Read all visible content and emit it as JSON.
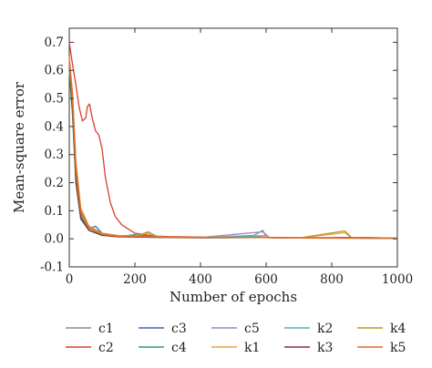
{
  "chart_data": {
    "type": "line",
    "title": "",
    "xlabel": "Number of epochs",
    "ylabel": "Mean-square error",
    "xlim": [
      0,
      1000
    ],
    "ylim": [
      -0.1,
      0.75
    ],
    "x_ticks": [
      0,
      200,
      400,
      600,
      800,
      1000
    ],
    "y_ticks": [
      -0.1,
      0.0,
      0.1,
      0.2,
      0.3,
      0.4,
      0.5,
      0.6,
      0.7
    ],
    "grid": false,
    "legend_position": "bottom",
    "series": [
      {
        "name": "c1",
        "color": "#8a8a9a",
        "points": [
          [
            0,
            0.6
          ],
          [
            10,
            0.45
          ],
          [
            20,
            0.22
          ],
          [
            35,
            0.08
          ],
          [
            60,
            0.03
          ],
          [
            100,
            0.015
          ],
          [
            150,
            0.008
          ],
          [
            200,
            0.012
          ],
          [
            240,
            0.006
          ],
          [
            300,
            0.004
          ],
          [
            400,
            0.003
          ],
          [
            550,
            0.004
          ],
          [
            590,
            0.03
          ],
          [
            600,
            0.005
          ],
          [
            700,
            0.003
          ],
          [
            850,
            0.003
          ],
          [
            900,
            0.002
          ],
          [
            1000,
            0.002
          ]
        ]
      },
      {
        "name": "c2",
        "color": "#d9402b",
        "points": [
          [
            0,
            0.7
          ],
          [
            10,
            0.62
          ],
          [
            20,
            0.55
          ],
          [
            30,
            0.47
          ],
          [
            40,
            0.42
          ],
          [
            50,
            0.43
          ],
          [
            55,
            0.47
          ],
          [
            62,
            0.48
          ],
          [
            70,
            0.43
          ],
          [
            80,
            0.385
          ],
          [
            90,
            0.37
          ],
          [
            100,
            0.32
          ],
          [
            110,
            0.22
          ],
          [
            125,
            0.13
          ],
          [
            140,
            0.08
          ],
          [
            160,
            0.05
          ],
          [
            180,
            0.035
          ],
          [
            200,
            0.02
          ],
          [
            230,
            0.015
          ],
          [
            260,
            0.01
          ],
          [
            300,
            0.008
          ],
          [
            400,
            0.006
          ],
          [
            500,
            0.005
          ],
          [
            600,
            0.004
          ],
          [
            700,
            0.004
          ],
          [
            800,
            0.003
          ],
          [
            900,
            0.003
          ],
          [
            1000,
            0.003
          ]
        ]
      },
      {
        "name": "c3",
        "color": "#3a6aa8",
        "points": [
          [
            0,
            0.62
          ],
          [
            10,
            0.48
          ],
          [
            20,
            0.24
          ],
          [
            35,
            0.09
          ],
          [
            60,
            0.035
          ],
          [
            80,
            0.045
          ],
          [
            100,
            0.02
          ],
          [
            150,
            0.01
          ],
          [
            200,
            0.012
          ],
          [
            250,
            0.006
          ],
          [
            300,
            0.005
          ],
          [
            400,
            0.004
          ],
          [
            560,
            0.012
          ],
          [
            600,
            0.004
          ],
          [
            700,
            0.003
          ],
          [
            850,
            0.003
          ],
          [
            1000,
            0.002
          ]
        ]
      },
      {
        "name": "c4",
        "color": "#2e9a6e",
        "points": [
          [
            0,
            0.6
          ],
          [
            10,
            0.44
          ],
          [
            20,
            0.2
          ],
          [
            35,
            0.07
          ],
          [
            60,
            0.03
          ],
          [
            100,
            0.012
          ],
          [
            150,
            0.008
          ],
          [
            200,
            0.015
          ],
          [
            240,
            0.01
          ],
          [
            300,
            0.005
          ],
          [
            400,
            0.004
          ],
          [
            550,
            0.006
          ],
          [
            600,
            0.004
          ],
          [
            700,
            0.003
          ],
          [
            900,
            0.003
          ],
          [
            1000,
            0.002
          ]
        ]
      },
      {
        "name": "c5",
        "color": "#9a86c8",
        "points": [
          [
            0,
            0.63
          ],
          [
            10,
            0.5
          ],
          [
            20,
            0.26
          ],
          [
            35,
            0.1
          ],
          [
            60,
            0.04
          ],
          [
            100,
            0.02
          ],
          [
            150,
            0.01
          ],
          [
            200,
            0.008
          ],
          [
            300,
            0.006
          ],
          [
            400,
            0.005
          ],
          [
            590,
            0.025
          ],
          [
            610,
            0.005
          ],
          [
            700,
            0.004
          ],
          [
            1000,
            0.003
          ]
        ]
      },
      {
        "name": "k1",
        "color": "#e8a33a",
        "points": [
          [
            0,
            0.64
          ],
          [
            10,
            0.52
          ],
          [
            20,
            0.28
          ],
          [
            35,
            0.11
          ],
          [
            60,
            0.045
          ],
          [
            100,
            0.02
          ],
          [
            150,
            0.012
          ],
          [
            200,
            0.01
          ],
          [
            240,
            0.02
          ],
          [
            270,
            0.008
          ],
          [
            300,
            0.006
          ],
          [
            400,
            0.005
          ],
          [
            590,
            0.012
          ],
          [
            610,
            0.004
          ],
          [
            700,
            0.003
          ],
          [
            840,
            0.022
          ],
          [
            860,
            0.004
          ],
          [
            1000,
            0.003
          ]
        ]
      },
      {
        "name": "k2",
        "color": "#5bb0b0",
        "points": [
          [
            0,
            0.61
          ],
          [
            10,
            0.47
          ],
          [
            20,
            0.23
          ],
          [
            35,
            0.08
          ],
          [
            60,
            0.032
          ],
          [
            100,
            0.014
          ],
          [
            150,
            0.008
          ],
          [
            200,
            0.006
          ],
          [
            300,
            0.005
          ],
          [
            400,
            0.004
          ],
          [
            550,
            0.01
          ],
          [
            600,
            0.004
          ],
          [
            700,
            0.003
          ],
          [
            1000,
            0.002
          ]
        ]
      },
      {
        "name": "k3",
        "color": "#8a2f3f",
        "points": [
          [
            0,
            0.62
          ],
          [
            10,
            0.46
          ],
          [
            20,
            0.21
          ],
          [
            35,
            0.075
          ],
          [
            60,
            0.03
          ],
          [
            100,
            0.013
          ],
          [
            150,
            0.007
          ],
          [
            200,
            0.006
          ],
          [
            300,
            0.005
          ],
          [
            400,
            0.004
          ],
          [
            600,
            0.004
          ],
          [
            700,
            0.003
          ],
          [
            900,
            0.005
          ],
          [
            1000,
            0.002
          ]
        ]
      },
      {
        "name": "k4",
        "color": "#b39a2a",
        "points": [
          [
            0,
            0.63
          ],
          [
            10,
            0.49
          ],
          [
            20,
            0.25
          ],
          [
            35,
            0.095
          ],
          [
            60,
            0.038
          ],
          [
            100,
            0.016
          ],
          [
            150,
            0.009
          ],
          [
            200,
            0.007
          ],
          [
            240,
            0.025
          ],
          [
            270,
            0.007
          ],
          [
            300,
            0.005
          ],
          [
            400,
            0.004
          ],
          [
            600,
            0.004
          ],
          [
            700,
            0.003
          ],
          [
            840,
            0.028
          ],
          [
            860,
            0.005
          ],
          [
            1000,
            0.003
          ]
        ]
      },
      {
        "name": "k5",
        "color": "#e46a2e",
        "points": [
          [
            0,
            0.65
          ],
          [
            10,
            0.51
          ],
          [
            20,
            0.27
          ],
          [
            35,
            0.1
          ],
          [
            60,
            0.042
          ],
          [
            100,
            0.018
          ],
          [
            150,
            0.01
          ],
          [
            200,
            0.008
          ],
          [
            300,
            0.006
          ],
          [
            400,
            0.005
          ],
          [
            600,
            0.004
          ],
          [
            700,
            0.003
          ],
          [
            1000,
            0.002
          ]
        ]
      }
    ]
  }
}
